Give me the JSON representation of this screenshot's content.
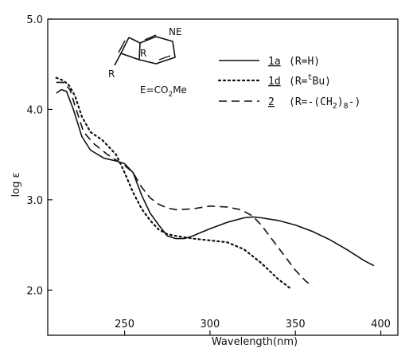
{
  "chart_data": {
    "type": "line",
    "xlabel": "Wavelength(nm)",
    "ylabel": "log ε",
    "xlim": [
      205,
      410
    ],
    "ylim": [
      1.5,
      5.0
    ],
    "xticks": [
      250,
      300,
      350,
      400
    ],
    "yticks": [
      2.0,
      3.0,
      4.0,
      5.0
    ],
    "xtick_labels": [
      "250",
      "300",
      "350",
      "400"
    ],
    "ytick_labels": [
      "2.0",
      "3.0",
      "4.0",
      "5.0"
    ],
    "grid": false,
    "legend_position": "top-right",
    "series": [
      {
        "name": "1a (R=H)",
        "id": "1a",
        "label": "(R=H)",
        "style": "solid",
        "points": [
          [
            210,
            4.18
          ],
          [
            213,
            4.22
          ],
          [
            216,
            4.2
          ],
          [
            220,
            4.0
          ],
          [
            225,
            3.7
          ],
          [
            230,
            3.55
          ],
          [
            238,
            3.46
          ],
          [
            245,
            3.43
          ],
          [
            250,
            3.4
          ],
          [
            255,
            3.3
          ],
          [
            260,
            3.05
          ],
          [
            265,
            2.85
          ],
          [
            270,
            2.72
          ],
          [
            275,
            2.6
          ],
          [
            280,
            2.57
          ],
          [
            285,
            2.57
          ],
          [
            290,
            2.6
          ],
          [
            300,
            2.68
          ],
          [
            310,
            2.75
          ],
          [
            320,
            2.8
          ],
          [
            325,
            2.81
          ],
          [
            330,
            2.8
          ],
          [
            340,
            2.77
          ],
          [
            350,
            2.72
          ],
          [
            360,
            2.65
          ],
          [
            370,
            2.56
          ],
          [
            380,
            2.45
          ],
          [
            390,
            2.33
          ],
          [
            396,
            2.27
          ]
        ]
      },
      {
        "name": "1d (R=tBu)",
        "id": "1d",
        "label": "(R=",
        "label_sup": "t",
        "label_end": "Bu)",
        "style": "dotted",
        "points": [
          [
            210,
            4.35
          ],
          [
            213,
            4.33
          ],
          [
            217,
            4.28
          ],
          [
            221,
            4.15
          ],
          [
            225,
            3.92
          ],
          [
            230,
            3.75
          ],
          [
            237,
            3.66
          ],
          [
            245,
            3.5
          ],
          [
            250,
            3.3
          ],
          [
            255,
            3.08
          ],
          [
            260,
            2.9
          ],
          [
            265,
            2.77
          ],
          [
            270,
            2.67
          ],
          [
            275,
            2.62
          ],
          [
            280,
            2.6
          ],
          [
            290,
            2.57
          ],
          [
            300,
            2.55
          ],
          [
            310,
            2.53
          ],
          [
            320,
            2.45
          ],
          [
            330,
            2.3
          ],
          [
            340,
            2.12
          ],
          [
            347,
            2.02
          ]
        ]
      },
      {
        "name": "2 (R=-(CH2)8-)",
        "id": "2",
        "label": "(R=-(CH",
        "label_sub": "2",
        "label_mid": ")",
        "label_sub2": "8",
        "label_end": "-)",
        "style": "dashed",
        "points": [
          [
            210,
            4.3
          ],
          [
            214,
            4.3
          ],
          [
            218,
            4.22
          ],
          [
            222,
            3.98
          ],
          [
            226,
            3.75
          ],
          [
            232,
            3.62
          ],
          [
            240,
            3.5
          ],
          [
            250,
            3.38
          ],
          [
            255,
            3.3
          ],
          [
            260,
            3.14
          ],
          [
            265,
            3.02
          ],
          [
            270,
            2.95
          ],
          [
            275,
            2.91
          ],
          [
            280,
            2.89
          ],
          [
            290,
            2.9
          ],
          [
            300,
            2.93
          ],
          [
            310,
            2.92
          ],
          [
            318,
            2.89
          ],
          [
            325,
            2.82
          ],
          [
            330,
            2.72
          ],
          [
            340,
            2.47
          ],
          [
            350,
            2.22
          ],
          [
            356,
            2.1
          ],
          [
            360,
            2.04
          ]
        ]
      }
    ]
  },
  "structure": {
    "atom_ne": "NE",
    "atom_r_ring": "R",
    "atom_r_sub": "R",
    "definition_prefix": "E=CO",
    "definition_sub": "2",
    "definition_suffix": "Me"
  }
}
